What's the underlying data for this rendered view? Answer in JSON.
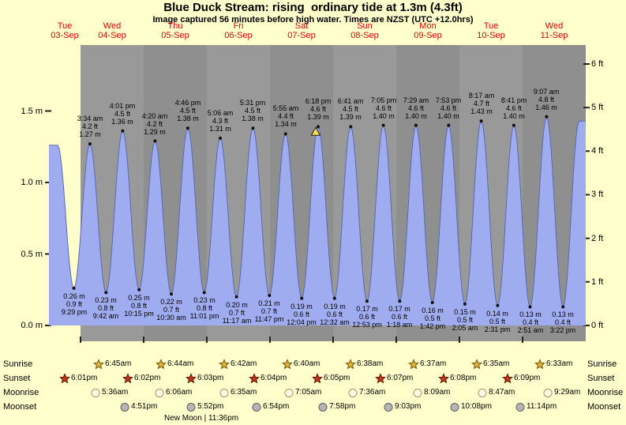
{
  "title": "Blue Duck Stream: rising  ordinary tide at 1.3m (4.3ft)",
  "subtitle": "Image captured 56 minutes before high water. Times are NZST (UTC +12.0hrs)",
  "colors": {
    "page_bg": "#ffffcc",
    "band_gray_a": "#999999",
    "band_gray_b": "#8f8f8f",
    "tide_fill": "#a0acf0",
    "tide_stroke": "#5a6ab0",
    "day_label": "#e00000",
    "marker_fill": "#f5e14a"
  },
  "chart_data": {
    "type": "area",
    "title": "Blue Duck Stream: rising  ordinary tide at 1.3m (4.3ft)",
    "x_axis": {
      "days": [
        {
          "name": "Tue",
          "date": "03-Sep"
        },
        {
          "name": "Wed",
          "date": "04-Sep"
        },
        {
          "name": "Thu",
          "date": "05-Sep"
        },
        {
          "name": "Fri",
          "date": "06-Sep"
        },
        {
          "name": "Sat",
          "date": "07-Sep"
        },
        {
          "name": "Sun",
          "date": "08-Sep"
        },
        {
          "name": "Mon",
          "date": "09-Sep"
        },
        {
          "name": "Tue",
          "date": "10-Sep"
        },
        {
          "name": "Wed",
          "date": "11-Sep"
        }
      ]
    },
    "y_left_ticks": [
      {
        "label": "1.5 m",
        "value": 1.5
      },
      {
        "label": "1.0 m",
        "value": 1.0
      },
      {
        "label": "0.5 m",
        "value": 0.5
      },
      {
        "label": "0.0 m",
        "value": 0.0
      }
    ],
    "y_right_ticks": [
      {
        "label": "6 ft",
        "value": 1.8288
      },
      {
        "label": "5 ft",
        "value": 1.524
      },
      {
        "label": "4 ft",
        "value": 1.2192
      },
      {
        "label": "3 ft",
        "value": 0.9144
      },
      {
        "label": "2 ft",
        "value": 0.6096
      },
      {
        "label": "1 ft",
        "value": 0.3048
      },
      {
        "label": "0 ft",
        "value": 0.0
      }
    ],
    "tides": [
      {
        "kind": "low",
        "time": "9:29 pm",
        "ft": "0.9 ft",
        "m_label": "0.26 m",
        "m": 0.26,
        "t": 21.48
      },
      {
        "kind": "high",
        "time": "3:34 am",
        "ft": "4.2 ft",
        "m_label": "1.27 m",
        "m": 1.27,
        "t": 27.57
      },
      {
        "kind": "low",
        "time": "9:42 am",
        "ft": "0.8 ft",
        "m_label": "0.23 m",
        "m": 0.23,
        "t": 33.7
      },
      {
        "kind": "high",
        "time": "4:01 pm",
        "ft": "4.5 ft",
        "m_label": "1.36 m",
        "m": 1.36,
        "t": 40.02
      },
      {
        "kind": "low",
        "time": "10:15 pm",
        "ft": "0.8 ft",
        "m_label": "0.25 m",
        "m": 0.25,
        "t": 46.25
      },
      {
        "kind": "high",
        "time": "4:20 am",
        "ft": "4.2 ft",
        "m_label": "1.29 m",
        "m": 1.29,
        "t": 52.33
      },
      {
        "kind": "low",
        "time": "10:30 am",
        "ft": "0.7 ft",
        "m_label": "0.22 m",
        "m": 0.22,
        "t": 58.5
      },
      {
        "kind": "high",
        "time": "4:46 pm",
        "ft": "4.5 ft",
        "m_label": "1.38 m",
        "m": 1.38,
        "t": 64.77
      },
      {
        "kind": "low",
        "time": "11:01 pm",
        "ft": "0.8 ft",
        "m_label": "0.23 m",
        "m": 0.23,
        "t": 71.02
      },
      {
        "kind": "high",
        "time": "5:06 am",
        "ft": "4.3 ft",
        "m_label": "1.31 m",
        "m": 1.31,
        "t": 77.1
      },
      {
        "kind": "low",
        "time": "11:17 am",
        "ft": "0.7 ft",
        "m_label": "0.20 m",
        "m": 0.2,
        "t": 83.28
      },
      {
        "kind": "high",
        "time": "5:31 pm",
        "ft": "4.5 ft",
        "m_label": "1.38 m",
        "m": 1.38,
        "t": 89.52
      },
      {
        "kind": "low",
        "time": "11:47 pm",
        "ft": "0.7 ft",
        "m_label": "0.21 m",
        "m": 0.21,
        "t": 95.78
      },
      {
        "kind": "high",
        "time": "5:55 am",
        "ft": "4.4 ft",
        "m_label": "1.34 m",
        "m": 1.34,
        "t": 101.92
      },
      {
        "kind": "low",
        "time": "12:04 pm",
        "ft": "0.6 ft",
        "m_label": "0.19 m",
        "m": 0.19,
        "t": 108.07
      },
      {
        "kind": "high",
        "time": "6:18 pm",
        "ft": "4.6 ft",
        "m_label": "1.39 m",
        "m": 1.39,
        "t": 114.3
      },
      {
        "kind": "low",
        "time": "12:32 am",
        "ft": "0.6 ft",
        "m_label": "0.19 m",
        "m": 0.19,
        "t": 120.53
      },
      {
        "kind": "high",
        "time": "6:41 am",
        "ft": "4.5 ft",
        "m_label": "1.39 m",
        "m": 1.39,
        "t": 126.68
      },
      {
        "kind": "low",
        "time": "12:53 pm",
        "ft": "0.6 ft",
        "m_label": "0.17 m",
        "m": 0.17,
        "t": 132.88
      },
      {
        "kind": "high",
        "time": "7:05 pm",
        "ft": "4.6 ft",
        "m_label": "1.40 m",
        "m": 1.4,
        "t": 139.08
      },
      {
        "kind": "low",
        "time": "1:18 am",
        "ft": "0.6 ft",
        "m_label": "0.17 m",
        "m": 0.17,
        "t": 145.3
      },
      {
        "kind": "high",
        "time": "7:29 am",
        "ft": "4.6 ft",
        "m_label": "1.40 m",
        "m": 1.4,
        "t": 151.48
      },
      {
        "kind": "low",
        "time": "1:42 pm",
        "ft": "0.5 ft",
        "m_label": "0.16 m",
        "m": 0.16,
        "t": 157.7
      },
      {
        "kind": "high",
        "time": "7:53 pm",
        "ft": "4.6 ft",
        "m_label": "1.40 m",
        "m": 1.4,
        "t": 163.88
      },
      {
        "kind": "low",
        "time": "2:05 am",
        "ft": "0.5 ft",
        "m_label": "0.15 m",
        "m": 0.15,
        "t": 170.08
      },
      {
        "kind": "high",
        "time": "8:17 am",
        "ft": "4.7 ft",
        "m_label": "1.43 m",
        "m": 1.43,
        "t": 176.28
      },
      {
        "kind": "low",
        "time": "2:31 pm",
        "ft": "0.5 ft",
        "m_label": "0.14 m",
        "m": 0.14,
        "t": 182.52
      },
      {
        "kind": "high",
        "time": "8:41 pm",
        "ft": "4.6 ft",
        "m_label": "1.40 m",
        "m": 1.4,
        "t": 188.68
      },
      {
        "kind": "low",
        "time": "2:51 am",
        "ft": "0.4 ft",
        "m_label": "0.13 m",
        "m": 0.13,
        "t": 194.85
      },
      {
        "kind": "high",
        "time": "9:07 am",
        "ft": "4.8 ft",
        "m_label": "1.46 m",
        "m": 1.46,
        "t": 201.12
      },
      {
        "kind": "low",
        "time": "3:22 pm",
        "ft": "0.4 ft",
        "m_label": "0.13 m",
        "m": 0.13,
        "t": 207.37
      }
    ],
    "current_marker": {
      "t": 113.37,
      "m": 1.33
    }
  },
  "astro": {
    "rows": [
      {
        "label": "Sunrise",
        "type": "star",
        "icon": "sunrise-star-icon",
        "fill": "#d9b53b",
        "edge": "#77540a",
        "events": [
          {
            "time": "6:45am",
            "t": 30.75
          },
          {
            "time": "6:44am",
            "t": 54.73
          },
          {
            "time": "6:42am",
            "t": 78.7
          },
          {
            "time": "6:40am",
            "t": 102.67
          },
          {
            "time": "6:38am",
            "t": 126.63
          },
          {
            "time": "6:37am",
            "t": 150.62
          },
          {
            "time": "6:35am",
            "t": 174.58
          },
          {
            "time": "6:33am",
            "t": 198.55
          }
        ]
      },
      {
        "label": "Sunset",
        "type": "star",
        "icon": "sunset-star-icon",
        "fill": "#c0391d",
        "edge": "#5a1400",
        "events": [
          {
            "time": "6:01pm",
            "t": 18.02
          },
          {
            "time": "6:02pm",
            "t": 42.03
          },
          {
            "time": "6:03pm",
            "t": 66.05
          },
          {
            "time": "6:04pm",
            "t": 90.07
          },
          {
            "time": "6:05pm",
            "t": 114.08
          },
          {
            "time": "6:07pm",
            "t": 138.12
          },
          {
            "time": "6:08pm",
            "t": 162.13
          },
          {
            "time": "6:09pm",
            "t": 186.15
          }
        ]
      },
      {
        "label": "Moonrise",
        "type": "circle",
        "icon": "moonrise-icon",
        "fill": "#fffde8",
        "edge": "#999966",
        "events": [
          {
            "time": "5:36am",
            "t": 29.6
          },
          {
            "time": "6:06am",
            "t": 54.1
          },
          {
            "time": "6:35am",
            "t": 78.58
          },
          {
            "time": "7:05am",
            "t": 103.08
          },
          {
            "time": "7:36am",
            "t": 127.6
          },
          {
            "time": "8:09am",
            "t": 152.15
          },
          {
            "time": "8:47am",
            "t": 176.78
          },
          {
            "time": "9:29am",
            "t": 201.48
          }
        ]
      },
      {
        "label": "Moonset",
        "type": "circle",
        "icon": "moonset-icon",
        "fill": "#b5b5b5",
        "edge": "#5f5f5f",
        "events": [
          {
            "time": "4:51pm",
            "t": 40.85
          },
          {
            "time": "5:52pm",
            "t": 65.87
          },
          {
            "time": "6:54pm",
            "t": 90.9
          },
          {
            "time": "7:58pm",
            "t": 115.97
          },
          {
            "time": "9:03pm",
            "t": 141.05
          },
          {
            "time": "10:08pm",
            "t": 166.13
          },
          {
            "time": "11:14pm",
            "t": 191.23
          }
        ]
      }
    ],
    "new_moon": {
      "label": "New Moon | 11:36pm"
    }
  }
}
